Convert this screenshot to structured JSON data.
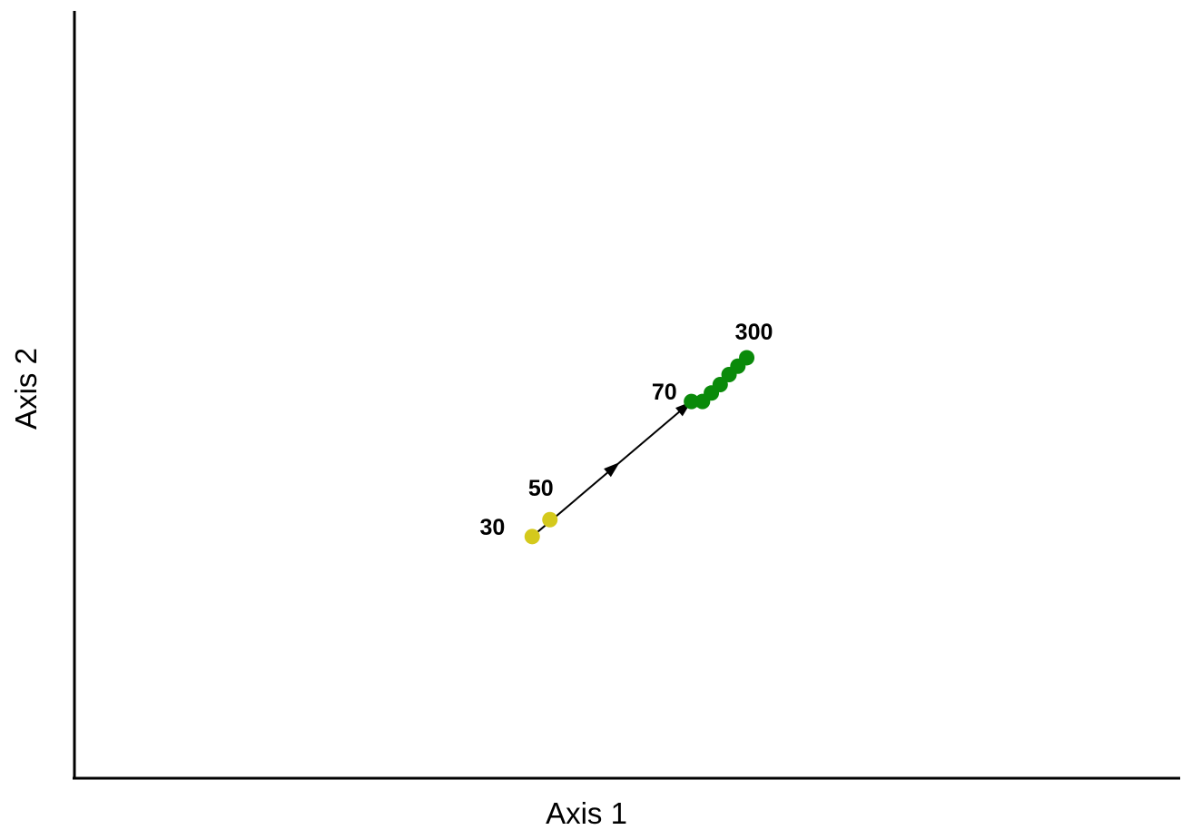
{
  "chart_data": {
    "type": "scatter",
    "xlabel": "Axis 1",
    "ylabel": "Axis 2",
    "xlim": [
      0,
      10
    ],
    "ylim": [
      0,
      10
    ],
    "grid": false,
    "ticks": false,
    "points": [
      {
        "x": 4.14,
        "y": 3.15,
        "label": "30",
        "color": "#d4c91c"
      },
      {
        "x": 4.3,
        "y": 3.37,
        "label": "50",
        "color": "#d4c91c"
      },
      {
        "x": 5.58,
        "y": 4.91,
        "label": "70",
        "color": "#0a8a0a"
      },
      {
        "x": 5.68,
        "y": 4.91,
        "label": "",
        "color": "#0a8a0a"
      },
      {
        "x": 5.76,
        "y": 5.02,
        "label": "",
        "color": "#0a8a0a"
      },
      {
        "x": 5.84,
        "y": 5.13,
        "label": "",
        "color": "#0a8a0a"
      },
      {
        "x": 5.92,
        "y": 5.26,
        "label": "",
        "color": "#0a8a0a"
      },
      {
        "x": 6.0,
        "y": 5.37,
        "label": "",
        "color": "#0a8a0a"
      },
      {
        "x": 6.08,
        "y": 5.48,
        "label": "300",
        "color": "#0a8a0a"
      }
    ],
    "trajectory": {
      "from": {
        "x": 4.14,
        "y": 3.15
      },
      "to": {
        "x": 5.58,
        "y": 4.91
      },
      "color": "#000000"
    }
  }
}
